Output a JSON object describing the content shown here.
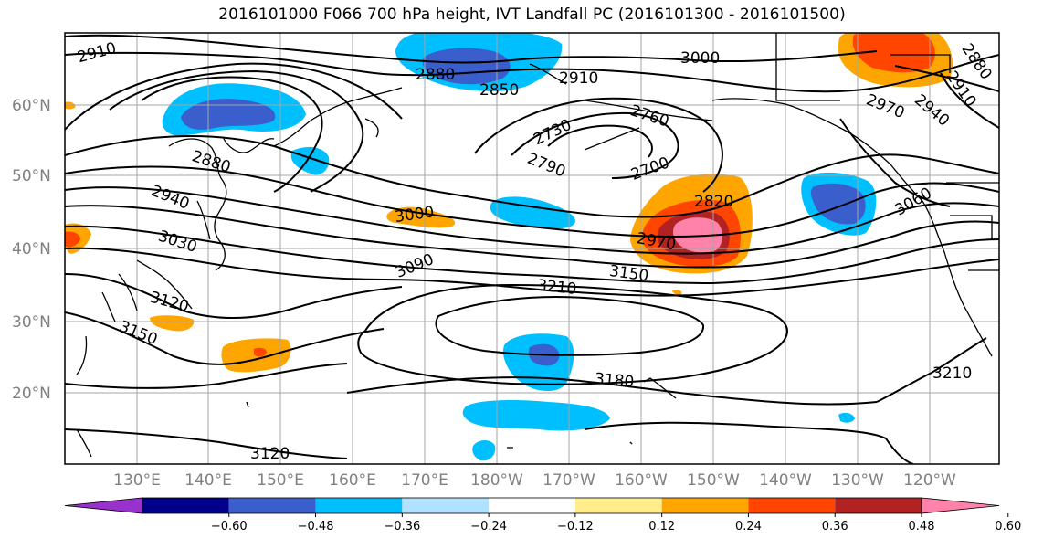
{
  "title": "2016101000 F066 700 hPa height, IVT Landfall PC (2016101300 - 2016101500)",
  "latitude_labels": [
    "60°N",
    "50°N",
    "40°N",
    "30°N",
    "20°N"
  ],
  "longitude_labels": [
    "130°E",
    "140°E",
    "150°E",
    "160°E",
    "170°E",
    "180°W",
    "170°W",
    "160°W",
    "150°W",
    "140°W",
    "130°W",
    "120°W"
  ],
  "contour_labels": [
    "2910",
    "2880",
    "2850",
    "2910",
    "3000",
    "2880",
    "2910",
    "2940",
    "2970",
    "2880",
    "2730",
    "2760",
    "2700",
    "2790",
    "2820",
    "2970",
    "3000",
    "3090",
    "3150",
    "3210",
    "2940",
    "3030",
    "3120",
    "3150",
    "3180",
    "3120",
    "3060",
    "3210"
  ],
  "colorbar": {
    "colors": [
      "#9932cc",
      "#00008b",
      "#3a5fcd",
      "#00bfff",
      "#b0e2ff",
      "#ffffff",
      "#ffec8b",
      "#ffa500",
      "#ff4500",
      "#b22222",
      "#ff82ab"
    ],
    "tick_labels": [
      "−0.60",
      "−0.48",
      "−0.36",
      "−0.24",
      "−0.12",
      "0.12",
      "0.24",
      "0.36",
      "0.48",
      "0.60"
    ]
  }
}
